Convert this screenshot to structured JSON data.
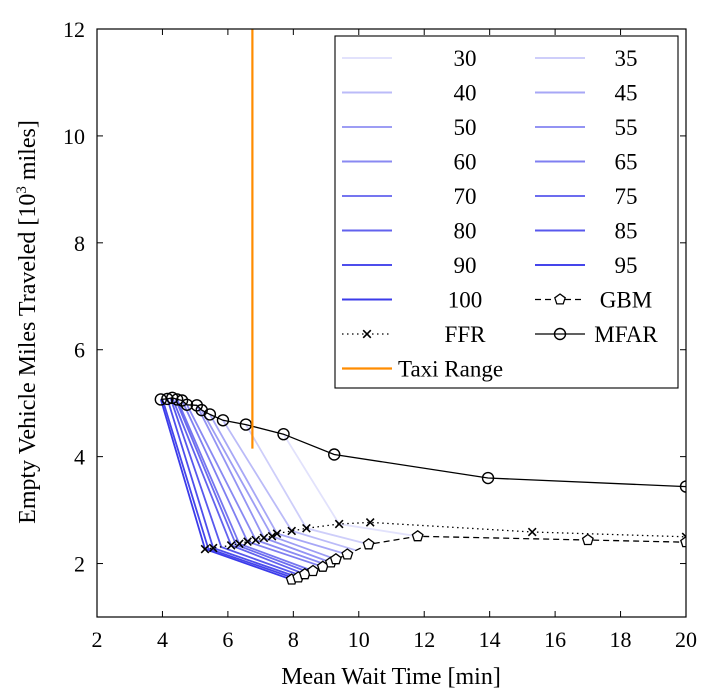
{
  "chart_data": {
    "type": "line",
    "title": "",
    "xlabel": "Mean Wait Time [min]",
    "ylabel_parts": [
      "Empty Vehicle Miles Traveled [10",
      "3",
      " miles]"
    ],
    "xlim": [
      2,
      20
    ],
    "ylim": [
      1,
      12
    ],
    "xticks": [
      2,
      4,
      6,
      8,
      10,
      12,
      14,
      16,
      18,
      20
    ],
    "yticks": [
      2,
      4,
      6,
      8,
      10,
      12
    ],
    "line_color": "#3b3bea",
    "series": [
      {
        "name": "MFAR",
        "style": "solid",
        "marker": "circle",
        "color": "#000000",
        "x": [
          3.95,
          4.15,
          4.3,
          4.45,
          4.6,
          4.75,
          5.05,
          5.2,
          5.45,
          5.85,
          6.55,
          7.7,
          9.25,
          13.95,
          20
        ],
        "y": [
          5.07,
          5.08,
          5.1,
          5.07,
          5.05,
          4.97,
          4.96,
          4.87,
          4.79,
          4.68,
          4.6,
          4.42,
          4.04,
          3.6,
          3.44
        ]
      },
      {
        "name": "FFR",
        "style": "dotted",
        "marker": "x",
        "color": "#000000",
        "x": [
          5.3,
          5.55,
          6.1,
          6.35,
          6.6,
          6.85,
          7.1,
          7.35,
          7.5,
          7.95,
          8.4,
          9.4,
          10.35,
          15.3,
          20
        ],
        "y": [
          2.27,
          2.29,
          2.34,
          2.37,
          2.41,
          2.44,
          2.48,
          2.51,
          2.56,
          2.61,
          2.66,
          2.74,
          2.77,
          2.59,
          2.5
        ]
      },
      {
        "name": "GBM",
        "style": "dashed",
        "marker": "pentagon",
        "color": "#000000",
        "x": [
          7.95,
          8.15,
          8.35,
          8.6,
          8.9,
          9.15,
          9.3,
          9.65,
          10.3,
          11.8,
          17.0,
          20
        ],
        "y": [
          1.7,
          1.74,
          1.8,
          1.86,
          1.94,
          2.02,
          2.08,
          2.17,
          2.36,
          2.51,
          2.44,
          2.4
        ]
      },
      {
        "name": "Taxi Range",
        "style": "solid",
        "marker": "none",
        "color": "#ff8c00",
        "x": [
          6.75,
          6.75
        ],
        "y": [
          4.15,
          12
        ]
      }
    ],
    "alpha_series": [
      {
        "label": "100",
        "opacity": 1.0,
        "x": [
          3.95,
          5.3,
          7.95
        ],
        "y": [
          5.07,
          2.27,
          1.7
        ]
      },
      {
        "label": "95",
        "opacity": 0.95,
        "x": [
          4.0,
          5.4,
          8.05
        ],
        "y": [
          5.08,
          2.28,
          1.72
        ]
      },
      {
        "label": "90",
        "opacity": 0.9,
        "x": [
          4.15,
          5.55,
          8.15
        ],
        "y": [
          5.08,
          2.29,
          1.74
        ]
      },
      {
        "label": "85",
        "opacity": 0.85,
        "x": [
          4.25,
          5.8,
          8.25
        ],
        "y": [
          5.09,
          2.31,
          1.77
        ]
      },
      {
        "label": "80",
        "opacity": 0.8,
        "x": [
          4.3,
          6.1,
          8.35
        ],
        "y": [
          5.1,
          2.34,
          1.8
        ]
      },
      {
        "label": "75",
        "opacity": 0.75,
        "x": [
          4.4,
          6.25,
          8.5
        ],
        "y": [
          5.08,
          2.35,
          1.83
        ]
      },
      {
        "label": "70",
        "opacity": 0.7,
        "x": [
          4.45,
          6.35,
          8.6
        ],
        "y": [
          5.07,
          2.37,
          1.86
        ]
      },
      {
        "label": "65",
        "opacity": 0.65,
        "x": [
          4.6,
          6.6,
          8.9
        ],
        "y": [
          5.05,
          2.41,
          1.94
        ]
      },
      {
        "label": "60",
        "opacity": 0.6,
        "x": [
          4.75,
          6.85,
          9.0
        ],
        "y": [
          4.97,
          2.44,
          1.98
        ]
      },
      {
        "label": "55",
        "opacity": 0.55,
        "x": [
          5.05,
          7.1,
          9.15
        ],
        "y": [
          4.96,
          2.48,
          2.02
        ]
      },
      {
        "label": "50",
        "opacity": 0.5,
        "x": [
          5.2,
          7.35,
          9.3
        ],
        "y": [
          4.87,
          2.51,
          2.08
        ]
      },
      {
        "label": "45",
        "opacity": 0.45,
        "x": [
          5.45,
          7.5,
          9.65
        ],
        "y": [
          4.79,
          2.56,
          2.17
        ]
      },
      {
        "label": "40",
        "opacity": 0.35,
        "x": [
          5.85,
          7.95,
          9.9
        ],
        "y": [
          4.68,
          2.61,
          2.25
        ]
      },
      {
        "label": "35",
        "opacity": 0.25,
        "x": [
          6.55,
          8.4,
          10.3
        ],
        "y": [
          4.6,
          2.66,
          2.36
        ]
      },
      {
        "label": "30",
        "opacity": 0.15,
        "x": [
          7.7,
          9.4,
          11.8
        ],
        "y": [
          4.42,
          2.74,
          2.51
        ]
      }
    ],
    "legend": {
      "position": "top-right",
      "rows": [
        [
          {
            "label": "30",
            "type": "alpha",
            "opacity": 0.15
          },
          {
            "label": "35",
            "type": "alpha",
            "opacity": 0.25
          }
        ],
        [
          {
            "label": "40",
            "type": "alpha",
            "opacity": 0.35
          },
          {
            "label": "45",
            "type": "alpha",
            "opacity": 0.45
          }
        ],
        [
          {
            "label": "50",
            "type": "alpha",
            "opacity": 0.5
          },
          {
            "label": "55",
            "type": "alpha",
            "opacity": 0.55
          }
        ],
        [
          {
            "label": "60",
            "type": "alpha",
            "opacity": 0.6
          },
          {
            "label": "65",
            "type": "alpha",
            "opacity": 0.65
          }
        ],
        [
          {
            "label": "70",
            "type": "alpha",
            "opacity": 0.7
          },
          {
            "label": "75",
            "type": "alpha",
            "opacity": 0.75
          }
        ],
        [
          {
            "label": "80",
            "type": "alpha",
            "opacity": 0.8
          },
          {
            "label": "85",
            "type": "alpha",
            "opacity": 0.85
          }
        ],
        [
          {
            "label": "90",
            "type": "alpha",
            "opacity": 0.9
          },
          {
            "label": "95",
            "type": "alpha",
            "opacity": 0.95
          }
        ],
        [
          {
            "label": "100",
            "type": "alpha",
            "opacity": 1.0
          },
          {
            "label": "GBM",
            "type": "GBM"
          }
        ],
        [
          {
            "label": "FFR",
            "type": "FFR"
          },
          {
            "label": "MFAR",
            "type": "MFAR"
          }
        ],
        [
          {
            "label": "Taxi Range",
            "type": "Taxi Range"
          }
        ]
      ]
    }
  }
}
